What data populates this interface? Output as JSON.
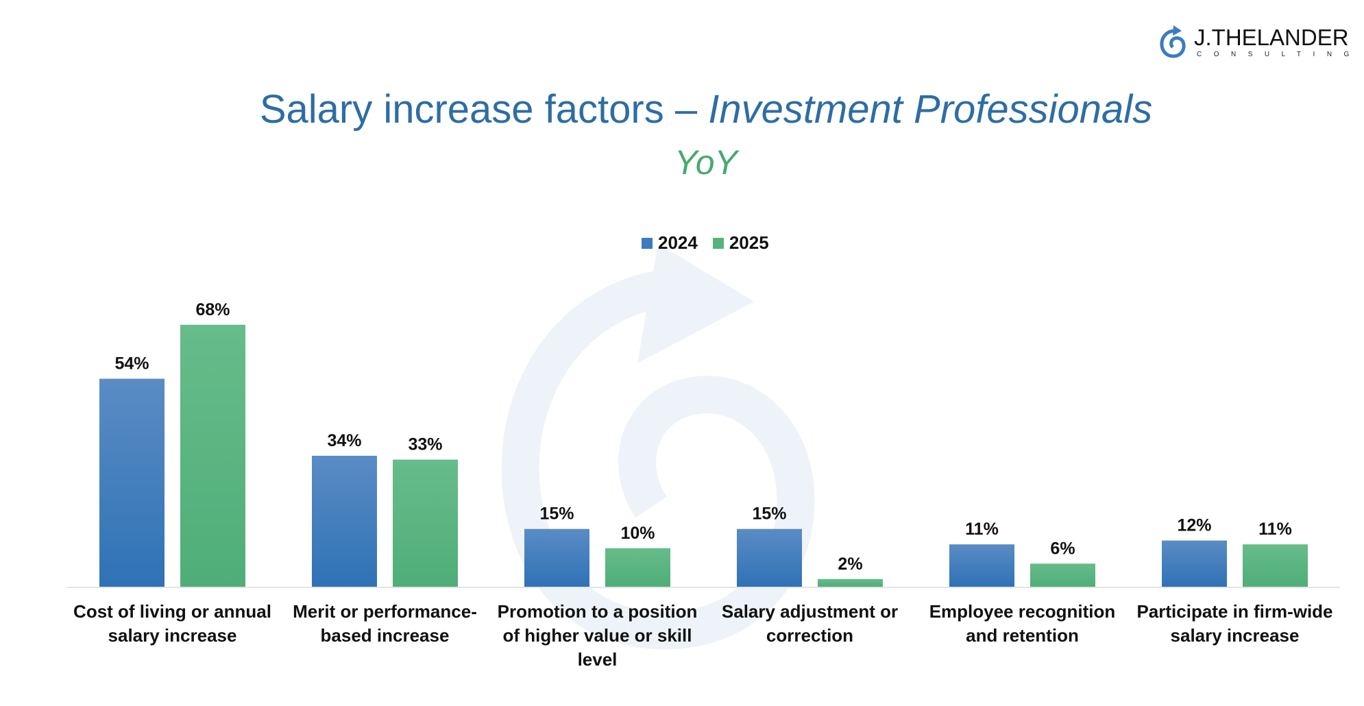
{
  "logo": {
    "name": "J.THELANDER",
    "sub": "CONSULTING",
    "icon": "spiral-arrow-icon"
  },
  "header": {
    "title_main": "Salary increase factors – ",
    "title_italic": "Investment Professionals",
    "subtitle": "YoY"
  },
  "colors": {
    "2024": "#3a7cbf",
    "2025": "#54b47c",
    "title": "#2e6da4",
    "subtitle": "#4aa870"
  },
  "chart_data": {
    "type": "bar",
    "title": "Salary increase factors – Investment Professionals",
    "subtitle": "YoY",
    "xlabel": "",
    "ylabel": "",
    "ylim": [
      0,
      70
    ],
    "grid": false,
    "legend": "top-center",
    "categories": [
      "Cost of living or annual salary increase",
      "Merit or performance-based increase",
      "Promotion to a position of higher value or skill level",
      "Salary adjustment or correction",
      "Employee recognition and retention",
      "Participate in firm-wide salary increase"
    ],
    "category_lines": [
      "Cost of living or annual\nsalary increase",
      "Merit or performance-\nbased increase",
      "Promotion to a position\nof higher value or skill\nlevel",
      "Salary adjustment or\ncorrection",
      "Employee recognition\nand retention",
      "Participate in firm-wide\nsalary increase"
    ],
    "series": [
      {
        "name": "2024",
        "values": [
          54,
          34,
          15,
          15,
          11,
          12
        ],
        "labels": [
          "54%",
          "34%",
          "15%",
          "15%",
          "11%",
          "12%"
        ]
      },
      {
        "name": "2025",
        "values": [
          68,
          33,
          10,
          2,
          6,
          11
        ],
        "labels": [
          "68%",
          "33%",
          "10%",
          "2%",
          "6%",
          "11%"
        ]
      }
    ],
    "unit": "%"
  }
}
